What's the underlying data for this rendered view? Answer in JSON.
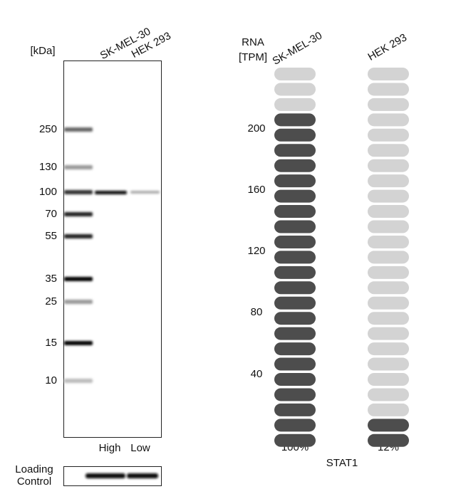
{
  "blot": {
    "unit_label": "[kDa]",
    "lanes": [
      "SK-MEL-30",
      "HEK 293"
    ],
    "markers": [
      "250",
      "130",
      "100",
      "70",
      "55",
      "35",
      "25",
      "15",
      "10"
    ],
    "levels": [
      "High",
      "Low"
    ],
    "loading_label": [
      "Loading",
      "Control"
    ]
  },
  "rna": {
    "axis_label": [
      "RNA",
      "[TPM]"
    ],
    "lanes": [
      "SK-MEL-30",
      "HEK 293"
    ],
    "ticks": [
      "200",
      "160",
      "120",
      "80",
      "40"
    ],
    "percentages": [
      "100%",
      "12%"
    ],
    "gene": "STAT1"
  }
}
